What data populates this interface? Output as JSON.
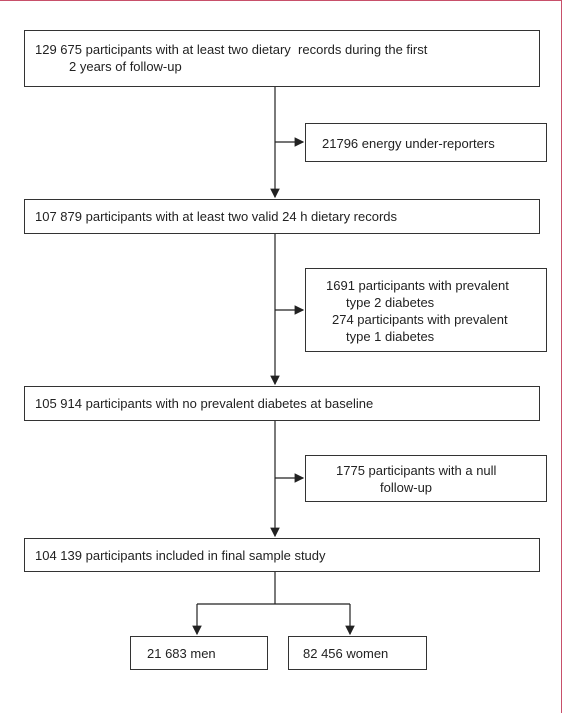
{
  "nodes": [
    {
      "lines": [
        "129 675 participants with at least two dietary  records during the first",
        "2 years of follow-up"
      ]
    },
    {
      "lines": [
        "21796 energy under-reporters"
      ]
    },
    {
      "lines": [
        "107 879 participants with at least two valid 24 h dietary records"
      ]
    },
    {
      "lines": [
        "1691 participants with prevalent",
        "type 2 diabetes",
        "274 participants with prevalent",
        "type 1 diabetes"
      ]
    },
    {
      "lines": [
        "105 914 participants with no prevalent diabetes at baseline"
      ]
    },
    {
      "lines": [
        "1775 participants with a null",
        "follow-up"
      ]
    },
    {
      "lines": [
        "104 139 participants included in final sample study"
      ]
    },
    {
      "lines": [
        "21 683 men"
      ]
    },
    {
      "lines": [
        "82 456 women"
      ]
    }
  ]
}
